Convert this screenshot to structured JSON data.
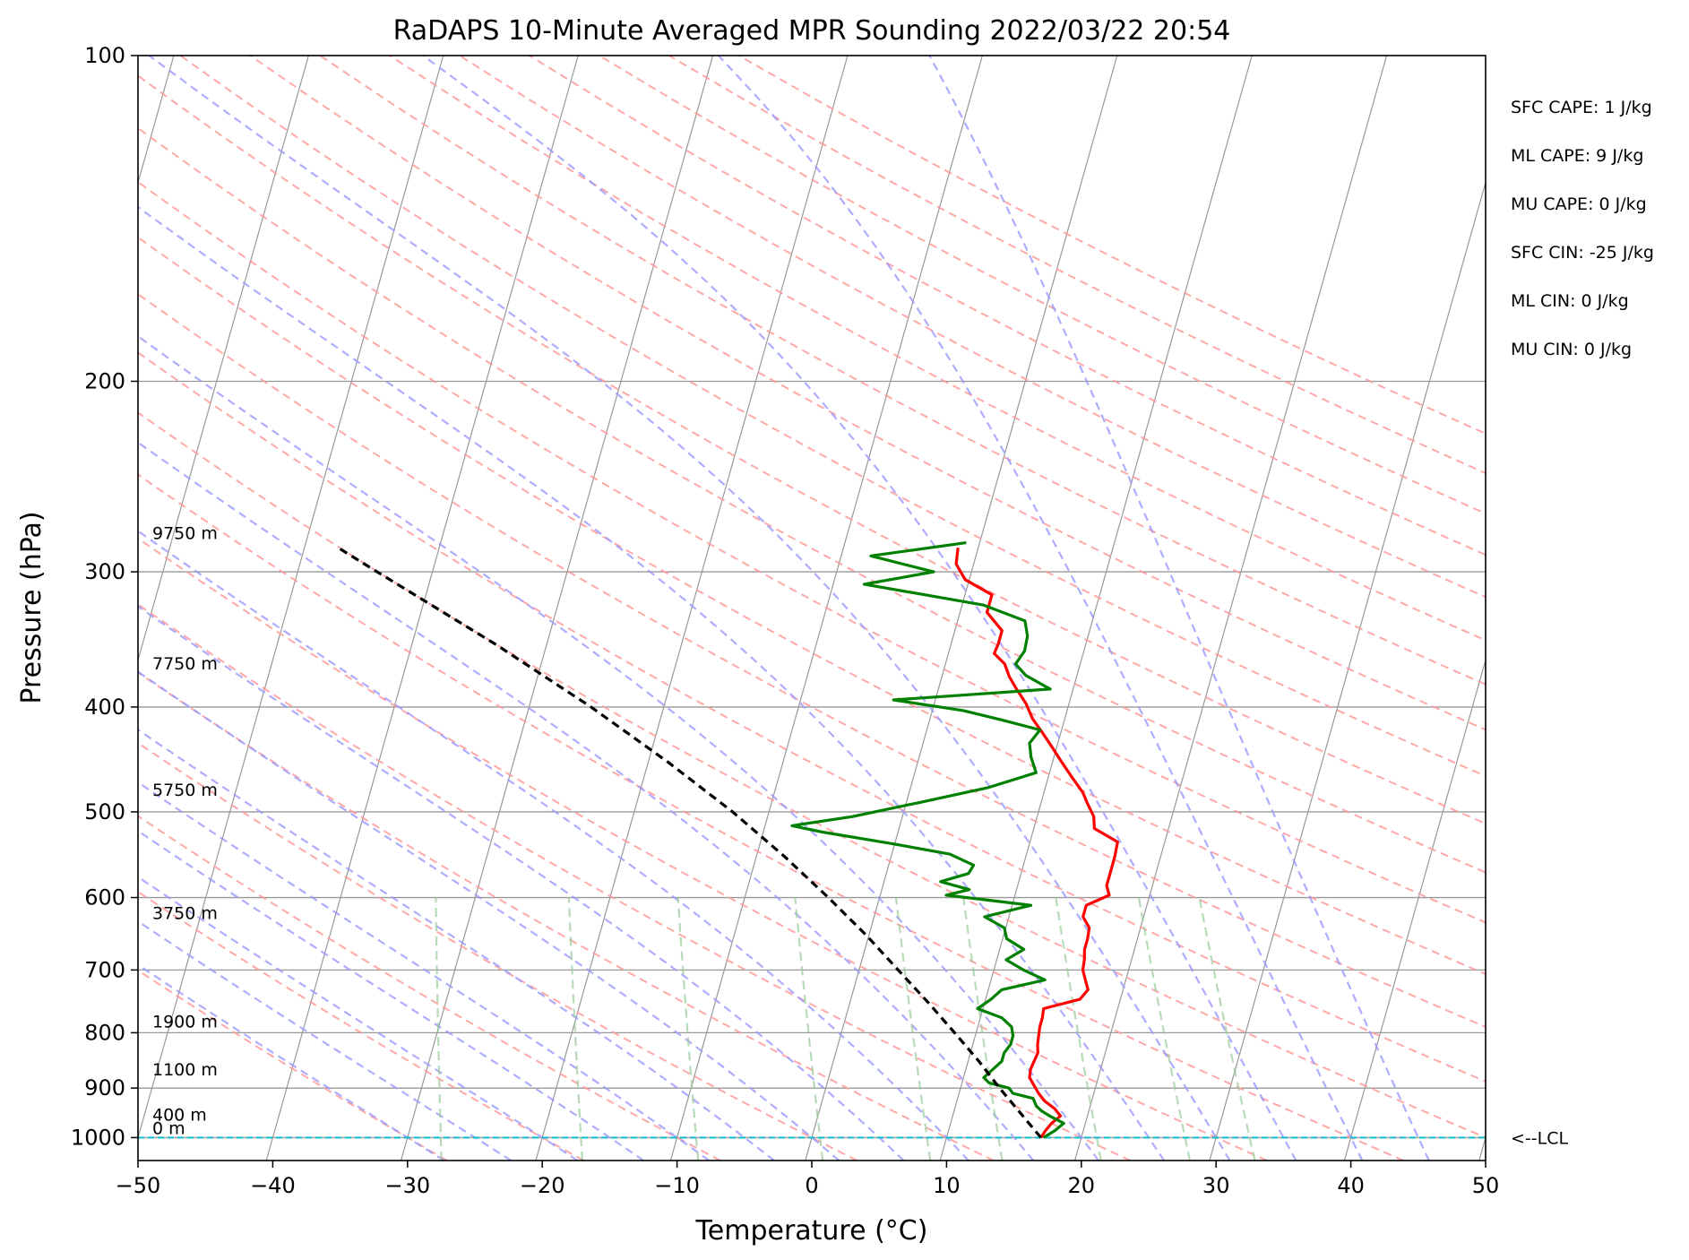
{
  "chart_data": {
    "type": "line",
    "title": "RaDAPS 10-Minute Averaged MPR Sounding 2022/03/22 20:54",
    "xlabel": "Temperature (°C)",
    "ylabel": "Pressure (hPa)",
    "xlim": [
      -50,
      50
    ],
    "ylim": [
      1050,
      100
    ],
    "y_scale": "log",
    "skew": "skew-T",
    "x_ticks": [
      -50,
      -40,
      -30,
      -20,
      -10,
      0,
      10,
      20,
      30,
      40,
      50
    ],
    "x_tick_labels": [
      "−50",
      "−40",
      "−30",
      "−20",
      "−10",
      "0",
      "10",
      "20",
      "30",
      "40",
      "50"
    ],
    "y_ticks": [
      1000,
      900,
      800,
      700,
      600,
      500,
      400,
      300,
      200,
      100
    ],
    "y_tick_labels": [
      "1000",
      "900",
      "800",
      "700",
      "600",
      "500",
      "400",
      "300",
      "200",
      "100"
    ],
    "grid": true,
    "colors": {
      "temperature": "#ff0000",
      "dewpoint": "#008000",
      "parcel": "#000000",
      "lcl": "#17becf",
      "dry_adiabats": "#ff9999",
      "moist_adiabats": "#9999ff",
      "mixing_ratio": "#99cc99",
      "isotherms": "#999999"
    },
    "series": [
      {
        "key": "temperature",
        "pressure": [
          1000,
          985,
          970,
          955,
          940,
          925,
          910,
          895,
          880,
          865,
          850,
          835,
          820,
          805,
          790,
          775,
          760,
          745,
          730,
          715,
          700,
          685,
          670,
          655,
          640,
          625,
          610,
          597,
          585,
          570,
          550,
          533,
          518,
          505,
          490,
          480,
          465,
          450,
          435,
          422,
          410,
          397,
          385,
          375,
          365,
          357,
          350,
          340,
          327,
          315,
          305,
          295,
          285
        ],
        "values": [
          17.0,
          17.2,
          17.5,
          18.0,
          17.4,
          16.5,
          15.9,
          15.4,
          14.9,
          14.8,
          14.9,
          15.0,
          14.8,
          14.7,
          14.6,
          14.6,
          14.5,
          17.0,
          17.4,
          17.0,
          16.6,
          16.5,
          16.3,
          16.3,
          16.2,
          15.5,
          15.5,
          17.0,
          16.6,
          16.6,
          16.6,
          16.5,
          14.5,
          14.2,
          13.4,
          12.9,
          11.8,
          10.7,
          9.6,
          8.6,
          7.6,
          6.8,
          5.8,
          5.0,
          4.4,
          3.4,
          3.5,
          3.5,
          2.0,
          2.0,
          -0.3,
          -1.3,
          -1.5
        ]
      },
      {
        "key": "dewpoint",
        "pressure": [
          1000,
          985,
          970,
          955,
          945,
          935,
          920,
          910,
          900,
          890,
          880,
          865,
          850,
          835,
          820,
          805,
          790,
          775,
          760,
          745,
          730,
          715,
          700,
          685,
          670,
          655,
          640,
          625,
          610,
          597,
          590,
          580,
          570,
          560,
          547,
          535,
          522,
          515,
          505,
          490,
          475,
          460,
          445,
          432,
          420,
          411,
          403,
          394,
          385,
          374,
          365,
          355,
          344,
          333,
          322,
          308,
          300,
          290,
          282
        ],
        "values": [
          17.2,
          17.9,
          18.4,
          17.2,
          16.5,
          16.0,
          15.6,
          14.0,
          13.6,
          12.0,
          11.5,
          12.0,
          12.5,
          12.5,
          12.8,
          12.8,
          12.5,
          11.6,
          9.6,
          10.4,
          11.0,
          14.0,
          12.2,
          10.7,
          11.8,
          10.3,
          9.9,
          8.2,
          11.4,
          4.9,
          6.5,
          4.2,
          6.1,
          6.3,
          4.3,
          -0.2,
          -5.6,
          -8.0,
          -3.7,
          1.0,
          5.7,
          9.0,
          8.3,
          7.9,
          8.4,
          5.3,
          2.3,
          -3.1,
          8.3,
          6.2,
          5.2,
          5.6,
          5.5,
          5.0,
          1.6,
          -7.7,
          -2.8,
          -7.8,
          -1.0
        ]
      },
      {
        "key": "parcel",
        "pressure": [
          1000,
          950,
          900,
          850,
          800,
          750,
          700,
          650,
          600,
          550,
          500,
          450,
          400,
          350,
          300,
          285
        ],
        "values": [
          17.0,
          15.0,
          12.9,
          10.8,
          8.4,
          5.8,
          2.9,
          -0.2,
          -3.8,
          -7.9,
          -12.7,
          -18.5,
          -25.4,
          -33.8,
          -44.1,
          -47.5
        ]
      }
    ],
    "lcl_pressure": 1000,
    "lcl_label": "<--LCL",
    "height_labels": [
      {
        "text": "9750 m",
        "pressure": 282
      },
      {
        "text": "7750 m",
        "pressure": 372
      },
      {
        "text": "5750 m",
        "pressure": 487
      },
      {
        "text": "3750 m",
        "pressure": 633
      },
      {
        "text": "1900 m",
        "pressure": 797
      },
      {
        "text": "1100 m",
        "pressure": 883
      },
      {
        "text": "400 m",
        "pressure": 972
      },
      {
        "text": "0 m",
        "pressure": 1000
      }
    ]
  },
  "annotations": [
    "SFC CAPE: 1 J/kg",
    "ML CAPE: 9 J/kg",
    "MU CAPE: 0 J/kg",
    "SFC CIN: -25 J/kg",
    "ML CIN: 0 J/kg",
    "MU CIN: 0 J/kg"
  ]
}
